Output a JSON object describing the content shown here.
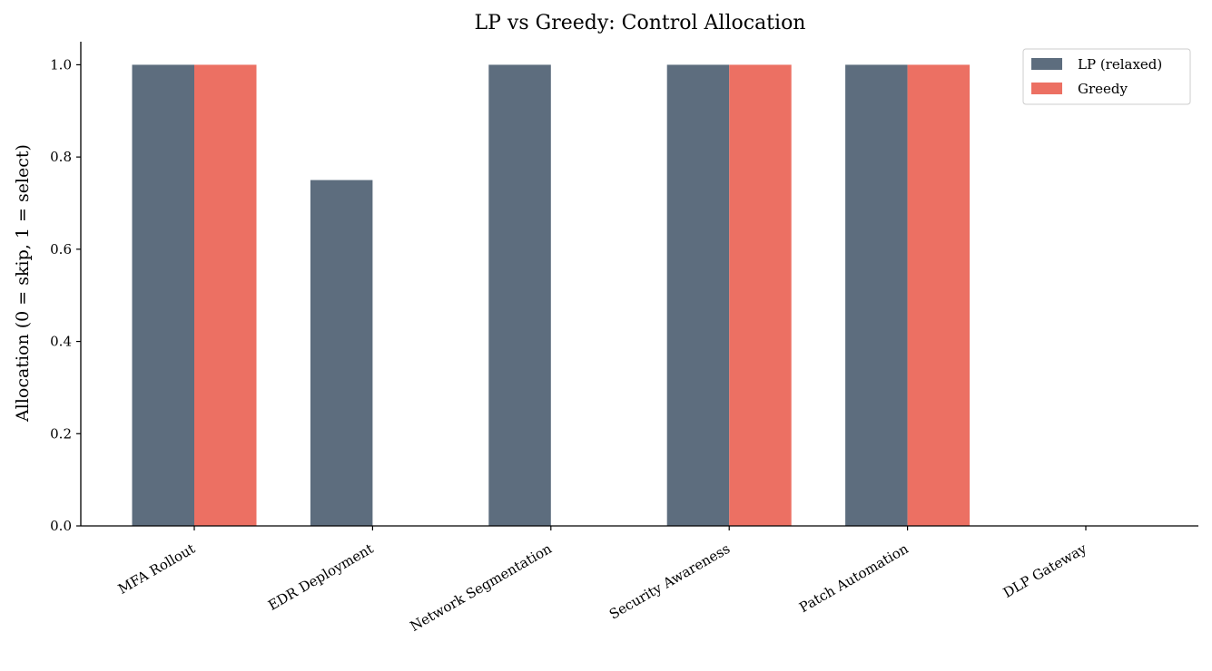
{
  "chart_data": {
    "type": "bar",
    "title": "LP vs Greedy: Control Allocation",
    "xlabel": "",
    "ylabel": "Allocation (0 = skip, 1 = select)",
    "categories": [
      "MFA Rollout",
      "EDR Deployment",
      "Network Segmentation",
      "Security Awareness",
      "Patch Automation",
      "DLP Gateway"
    ],
    "series": [
      {
        "name": "LP (relaxed)",
        "color": "#5d6d7e",
        "values": [
          1.0,
          0.75,
          1.0,
          1.0,
          1.0,
          0.0
        ]
      },
      {
        "name": "Greedy",
        "color": "#ec7063",
        "values": [
          1.0,
          0.0,
          0.0,
          1.0,
          1.0,
          0.0
        ]
      }
    ],
    "ylim": [
      0,
      1.05
    ],
    "yticks": [
      "0.0",
      "0.2",
      "0.4",
      "0.6",
      "0.8",
      "1.0"
    ],
    "grid": false,
    "legend_position": "top-right"
  }
}
